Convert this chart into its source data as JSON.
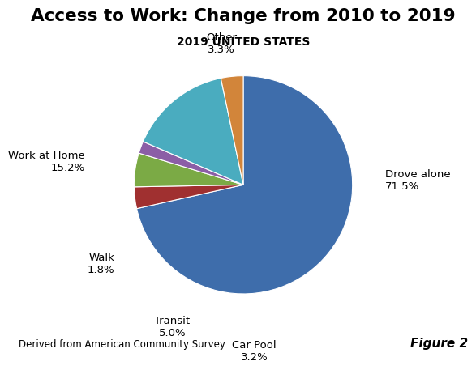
{
  "title": "Access to Work: Change from 2010 to 2019",
  "subtitle": "2019 UNITED STATES",
  "labels": [
    "Drove alone",
    "Car Pool",
    "Transit",
    "Walk",
    "Work at Home",
    "Other"
  ],
  "values": [
    71.5,
    3.2,
    5.0,
    1.8,
    15.2,
    3.3
  ],
  "colors": [
    "#3E6DAB",
    "#A03030",
    "#7BAA45",
    "#8B5EA6",
    "#4AACBF",
    "#D2853A"
  ],
  "footer_left": "Derived from American Community Survey",
  "footer_right": "Figure 2",
  "background_color": "#ffffff"
}
